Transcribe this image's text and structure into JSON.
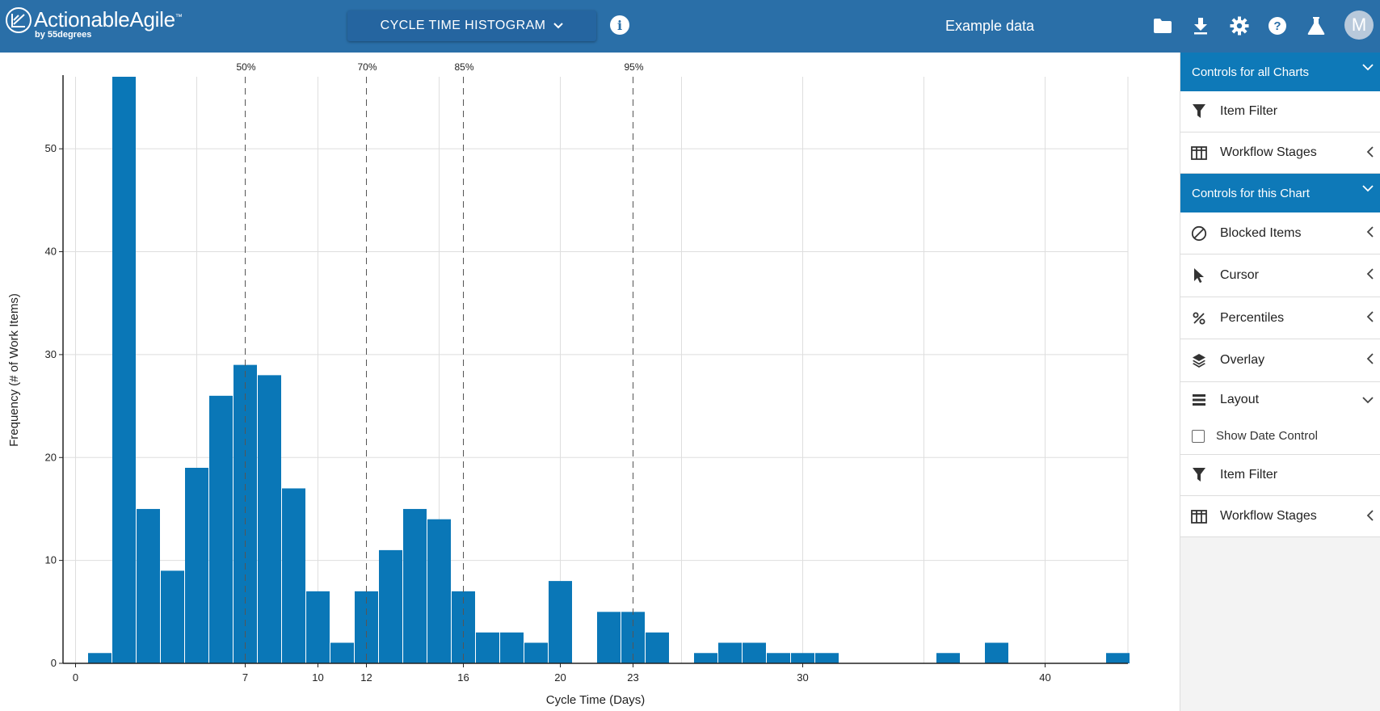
{
  "header": {
    "brand": "ActionableAgile",
    "brand_tm": "™",
    "brand_sub": "by 55degrees",
    "chart_selector": "CYCLE TIME HISTOGRAM",
    "dataset_name": "Example data",
    "avatar_initial": "M",
    "icons": [
      "folder-icon",
      "download-icon",
      "gear-icon",
      "help-icon",
      "flask-icon"
    ]
  },
  "sidebar": {
    "all_charts_header": "Controls for all Charts",
    "all_charts_items": [
      {
        "label": "Item Filter",
        "icon": "filter-icon"
      },
      {
        "label": "Workflow Stages",
        "icon": "columns-icon"
      }
    ],
    "this_chart_header": "Controls for this Chart",
    "this_chart_items": [
      {
        "label": "Blocked Items",
        "icon": "blocked-icon"
      },
      {
        "label": "Cursor",
        "icon": "cursor-icon"
      },
      {
        "label": "Percentiles",
        "icon": "percent-icon"
      },
      {
        "label": "Overlay",
        "icon": "layers-icon"
      }
    ],
    "layout": {
      "label": "Layout",
      "show_date_control": "Show Date Control",
      "show_date_control_checked": false
    },
    "bottom_items": [
      {
        "label": "Item Filter",
        "icon": "filter-icon"
      },
      {
        "label": "Workflow Stages",
        "icon": "columns-icon"
      }
    ]
  },
  "chart_data": {
    "type": "bar",
    "title": "",
    "xlabel": "Cycle Time (Days)",
    "ylabel": "Frequency (# of Work Items)",
    "xlim": [
      -0.5,
      43.5
    ],
    "ylim": [
      0,
      57
    ],
    "x_ticks": [
      0,
      7,
      10,
      12,
      16,
      20,
      23,
      30,
      40
    ],
    "y_ticks": [
      0,
      10,
      20,
      30,
      40,
      50
    ],
    "x_grid": [
      0,
      5,
      10,
      15,
      20,
      25,
      30,
      35,
      40
    ],
    "bars": [
      {
        "x": 1,
        "value": 1
      },
      {
        "x": 2,
        "value": 57
      },
      {
        "x": 3,
        "value": 15
      },
      {
        "x": 4,
        "value": 9
      },
      {
        "x": 5,
        "value": 19
      },
      {
        "x": 6,
        "value": 26
      },
      {
        "x": 7,
        "value": 29
      },
      {
        "x": 8,
        "value": 28
      },
      {
        "x": 9,
        "value": 17
      },
      {
        "x": 10,
        "value": 7
      },
      {
        "x": 11,
        "value": 2
      },
      {
        "x": 12,
        "value": 7
      },
      {
        "x": 13,
        "value": 11
      },
      {
        "x": 14,
        "value": 15
      },
      {
        "x": 15,
        "value": 14
      },
      {
        "x": 16,
        "value": 7
      },
      {
        "x": 17,
        "value": 3
      },
      {
        "x": 18,
        "value": 3
      },
      {
        "x": 19,
        "value": 2
      },
      {
        "x": 20,
        "value": 8
      },
      {
        "x": 22,
        "value": 5
      },
      {
        "x": 23,
        "value": 5
      },
      {
        "x": 24,
        "value": 3
      },
      {
        "x": 26,
        "value": 1
      },
      {
        "x": 27,
        "value": 2
      },
      {
        "x": 28,
        "value": 2
      },
      {
        "x": 29,
        "value": 1
      },
      {
        "x": 30,
        "value": 1
      },
      {
        "x": 31,
        "value": 1
      },
      {
        "x": 36,
        "value": 1
      },
      {
        "x": 38,
        "value": 2
      },
      {
        "x": 43,
        "value": 1
      }
    ],
    "percentiles": [
      {
        "label": "50%",
        "x": 7
      },
      {
        "label": "70%",
        "x": 12
      },
      {
        "label": "85%",
        "x": 16
      },
      {
        "label": "95%",
        "x": 23
      }
    ],
    "bar_color": "#0a77b7"
  }
}
